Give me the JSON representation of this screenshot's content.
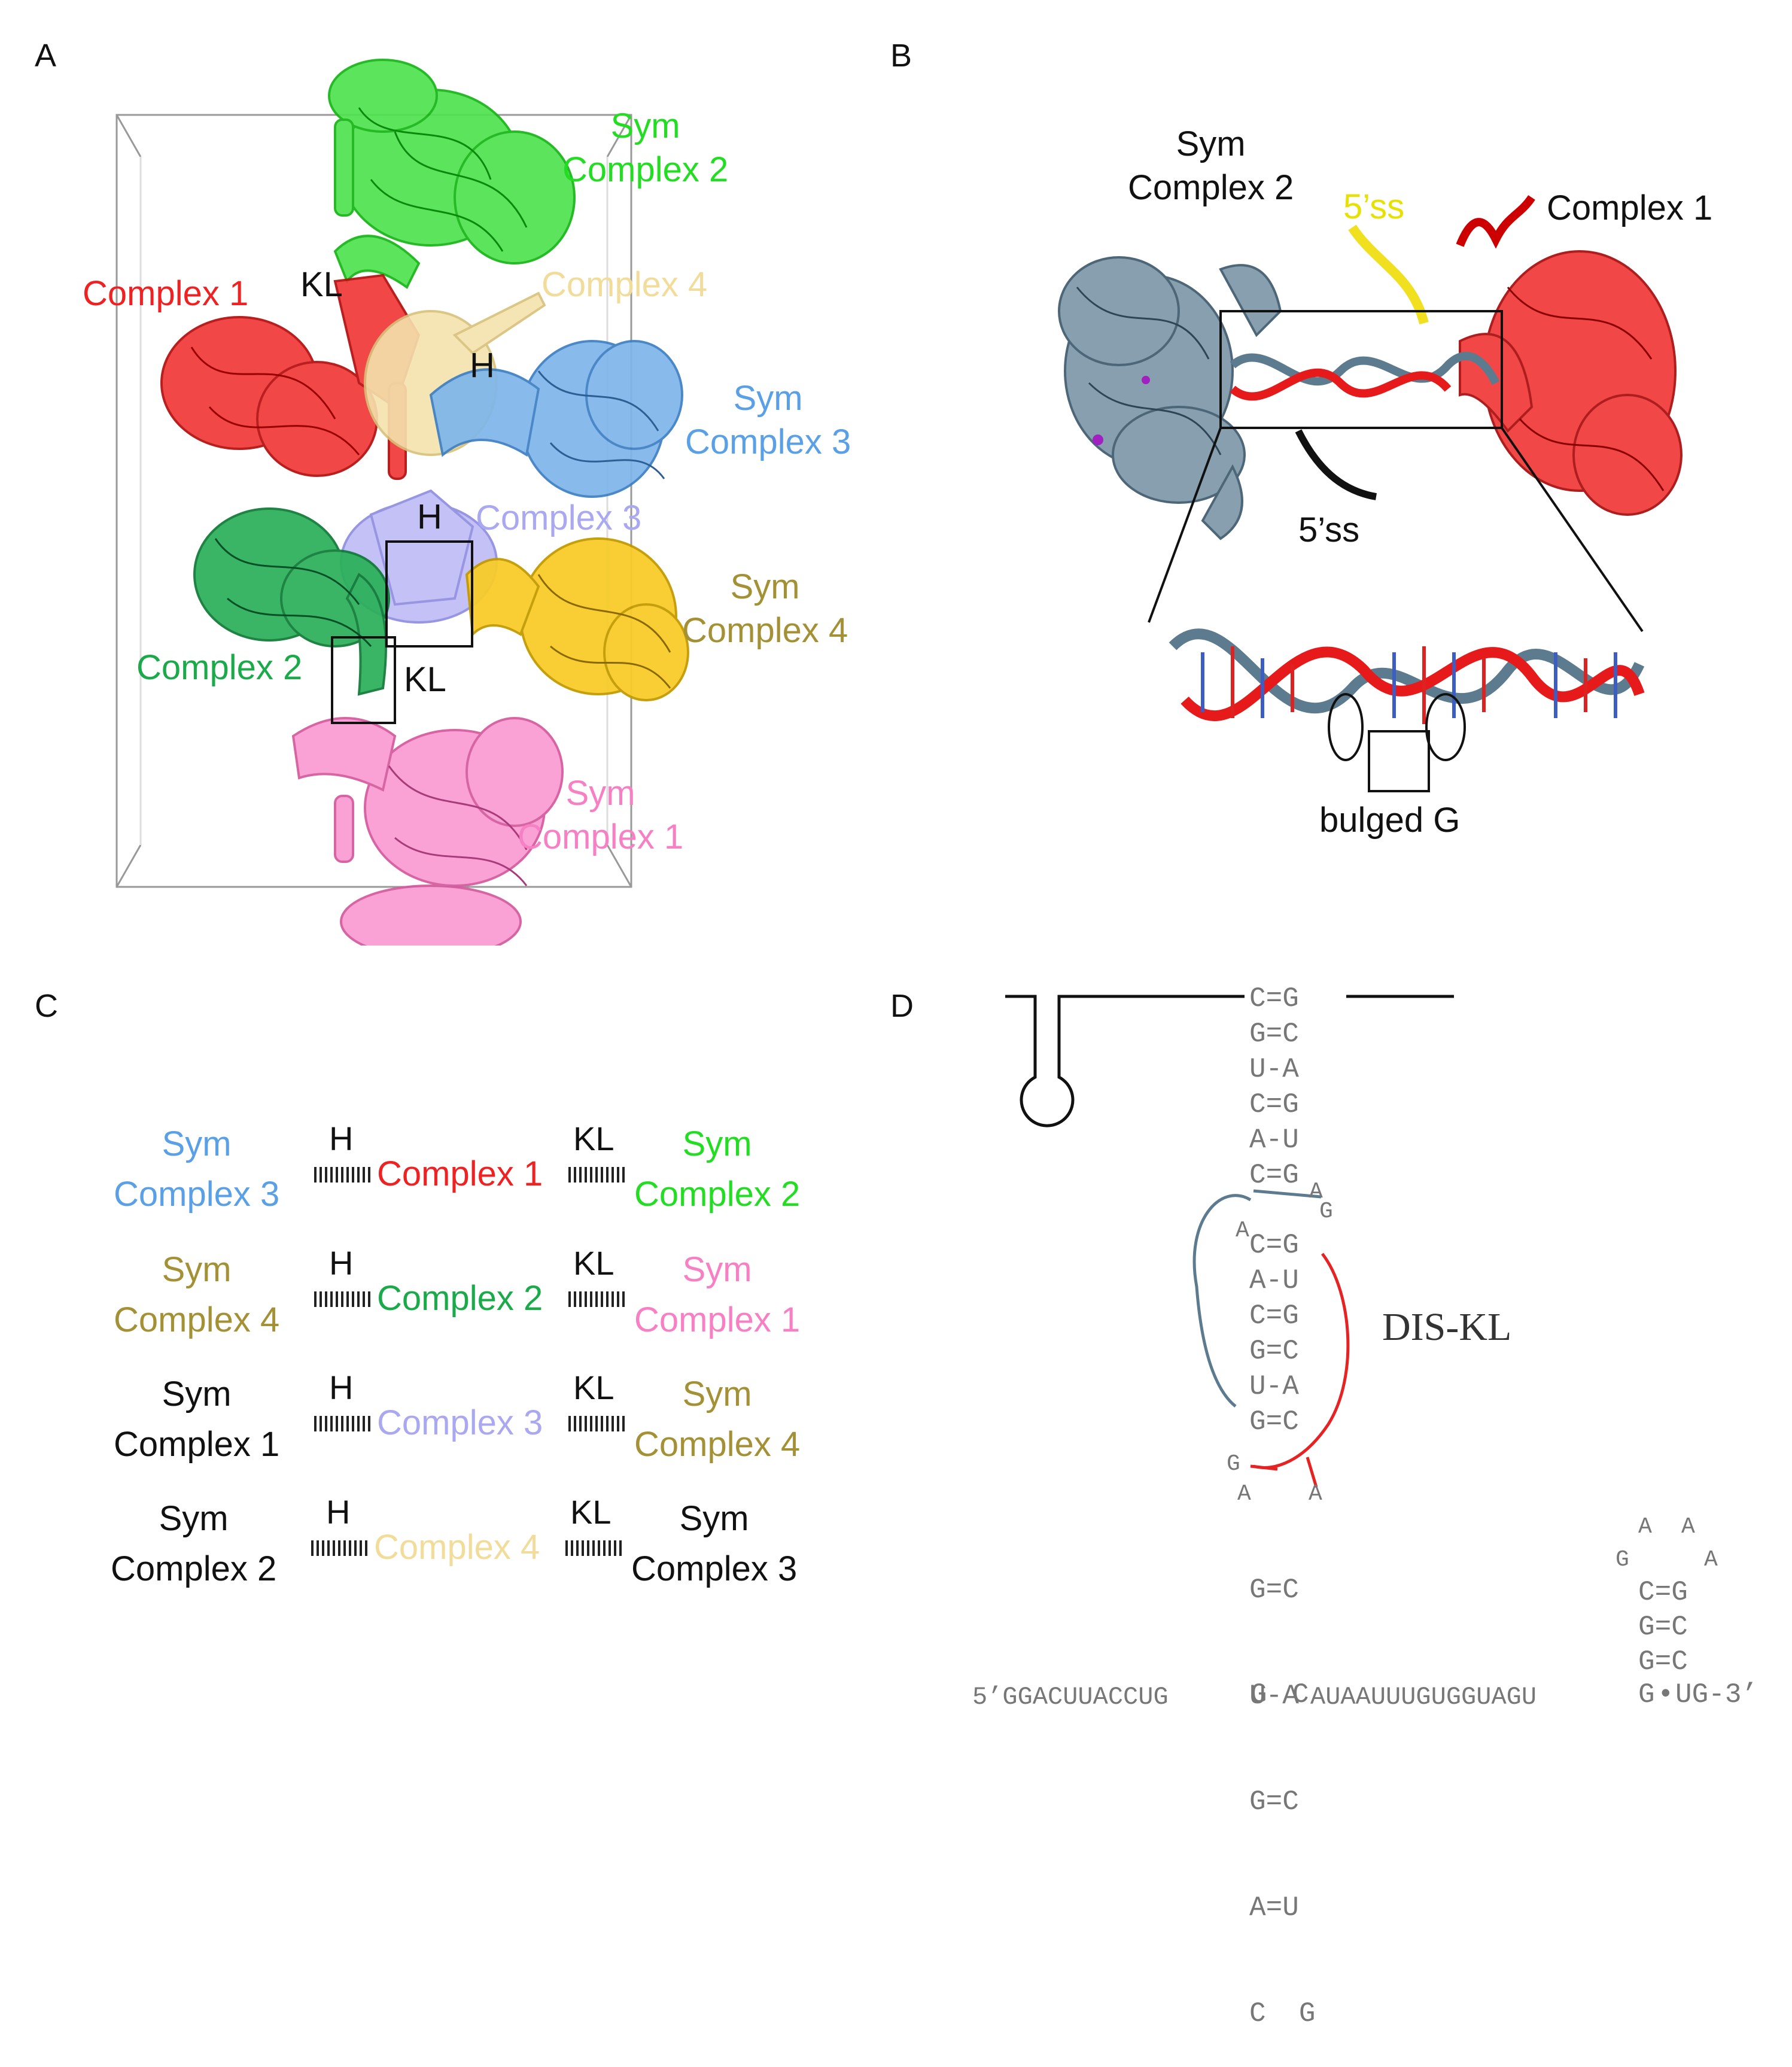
{
  "panels": {
    "a": "A",
    "b": "B",
    "c": "C",
    "d": "D"
  },
  "panel_a": {
    "labels": {
      "sym_complex2": [
        "Sym",
        "Complex 2"
      ],
      "complex1": "Complex 1",
      "complex4": "Complex 4",
      "kl_top": "KL",
      "h_top": "H",
      "sym_complex3": [
        "Sym",
        "Complex 3"
      ],
      "complex3": "Complex 3",
      "h_mid": "H",
      "sym_complex4": [
        "Sym",
        "Complex 4"
      ],
      "complex2": "Complex 2",
      "kl_mid": "KL",
      "sym_complex1": [
        "Sym",
        "Complex 1"
      ]
    },
    "colors": {
      "sym_complex2": "#22dd22",
      "complex1": "#ee2222",
      "complex4": "#f2dc9a",
      "sym_complex3": "#5aa0e6",
      "complex3": "#aaa8f0",
      "sym_complex4": "#a49035",
      "complex2": "#1aaa4a",
      "sym_complex1": "#f77fc4",
      "gold": "#f5c518",
      "steel": "#6f8fb0"
    }
  },
  "panel_b": {
    "labels": {
      "sym_complex2": [
        "Sym",
        "Complex 2"
      ],
      "ss_top": "5’ss",
      "complex1": "Complex 1",
      "ss_bottom": "5’ss",
      "bulged_g": "bulged G"
    },
    "colors": {
      "slate": "#5d7b8f",
      "red": "#e61a1a",
      "yellow": "#e8e000"
    }
  },
  "panel_c": {
    "rows": [
      {
        "left": [
          "Sym",
          "Complex 3"
        ],
        "left_color": "#5aa0e6",
        "h": "H",
        "center": "Complex 1",
        "center_color": "#ee2222",
        "kl": "KL",
        "right": [
          "Sym",
          "Complex 2"
        ],
        "right_color": "#22dd22"
      },
      {
        "left": [
          "Sym",
          "Complex 4"
        ],
        "left_color": "#a49035",
        "h": "H",
        "center": "Complex 2",
        "center_color": "#1aaa4a",
        "kl": "KL",
        "right": [
          "Sym",
          "Complex 1"
        ],
        "right_color": "#f77fc4"
      },
      {
        "left": [
          "Sym",
          "Complex 1"
        ],
        "left_color": "#111111",
        "h": "H",
        "center": "Complex 3",
        "center_color": "#aaa8f0",
        "kl": "KL",
        "right": [
          "Sym",
          "Complex 4"
        ],
        "right_color": "#a49035"
      },
      {
        "left": [
          "Sym",
          "Complex 2"
        ],
        "left_color": "#111111",
        "h": "H",
        "center": "Complex 4",
        "center_color": "#f2dc9a",
        "kl": "KL",
        "right": [
          "Sym",
          "Complex 3"
        ],
        "right_color": "#111111"
      }
    ]
  },
  "panel_d": {
    "stem_pairs": [
      "C=G",
      "G=C",
      "U-A",
      "C=G",
      "A-U",
      "C=G"
    ],
    "bulge_right": [
      "A",
      "G"
    ],
    "bulge_left": "A",
    "loop_pairs": [
      "C=G",
      "A-U",
      "C=G",
      "G=C",
      "U-A",
      "G=C"
    ],
    "g_left": "G",
    "aa_left": "A",
    "aa_right": "A",
    "lower_pairs": [
      "G=C",
      "U-A",
      "G=C",
      "A=U",
      "C  G"
    ],
    "sequence_left": "5’GGACUUACCUG",
    "g_junction": "G",
    "c_junction": "C",
    "sequence_right": "AUAAUUUGUGGUAGU",
    "g_end": "G",
    "dot": "•",
    "sequence_end": "UG-3’",
    "hairpin_loop": [
      "A",
      "A",
      "G",
      "A"
    ],
    "hairpin_pairs": [
      "C=G",
      "G=C",
      "G=C"
    ],
    "dis_kl": "DIS-KL",
    "colors": {
      "slate": "#5d7b8f",
      "red": "#e62222"
    }
  }
}
